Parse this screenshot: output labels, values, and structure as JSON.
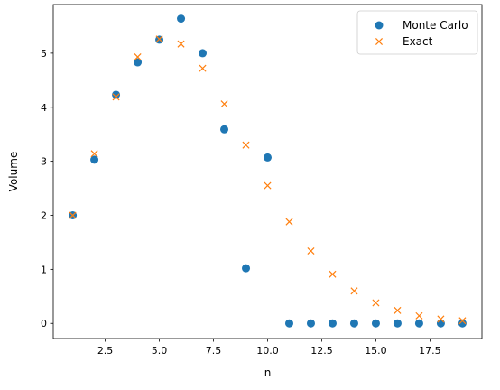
{
  "chart_data": {
    "type": "scatter",
    "xlabel": "n",
    "ylabel": "Volume",
    "xlim": [
      0.1,
      19.9
    ],
    "ylim": [
      -0.28,
      5.9
    ],
    "xticks": [
      2.5,
      5.0,
      7.5,
      10.0,
      12.5,
      15.0,
      17.5
    ],
    "xtick_labels": [
      "2.5",
      "5.0",
      "7.5",
      "10.0",
      "12.5",
      "15.0",
      "17.5"
    ],
    "yticks": [
      0,
      1,
      2,
      3,
      4,
      5
    ],
    "ytick_labels": [
      "0",
      "1",
      "2",
      "3",
      "4",
      "5"
    ],
    "grid": false,
    "legend_position": "top-right",
    "series": [
      {
        "name": "Monte Carlo",
        "marker": "circle",
        "color": "#1f77b4",
        "x": [
          1,
          2,
          3,
          4,
          5,
          6,
          7,
          8,
          9,
          10,
          11,
          12,
          13,
          14,
          15,
          16,
          17,
          18,
          19
        ],
        "y": [
          2.0,
          3.03,
          4.23,
          4.83,
          5.25,
          5.64,
          5.0,
          3.59,
          1.02,
          3.07,
          0,
          0,
          0,
          0,
          0,
          0,
          0,
          0,
          0
        ]
      },
      {
        "name": "Exact",
        "marker": "x",
        "color": "#ff7f0e",
        "x": [
          1,
          2,
          3,
          4,
          5,
          6,
          7,
          8,
          9,
          10,
          11,
          12,
          13,
          14,
          15,
          16,
          17,
          18,
          19
        ],
        "y": [
          2.0,
          3.14,
          4.19,
          4.93,
          5.26,
          5.17,
          4.72,
          4.06,
          3.3,
          2.55,
          1.88,
          1.34,
          0.91,
          0.6,
          0.38,
          0.24,
          0.14,
          0.08,
          0.05
        ]
      }
    ]
  }
}
